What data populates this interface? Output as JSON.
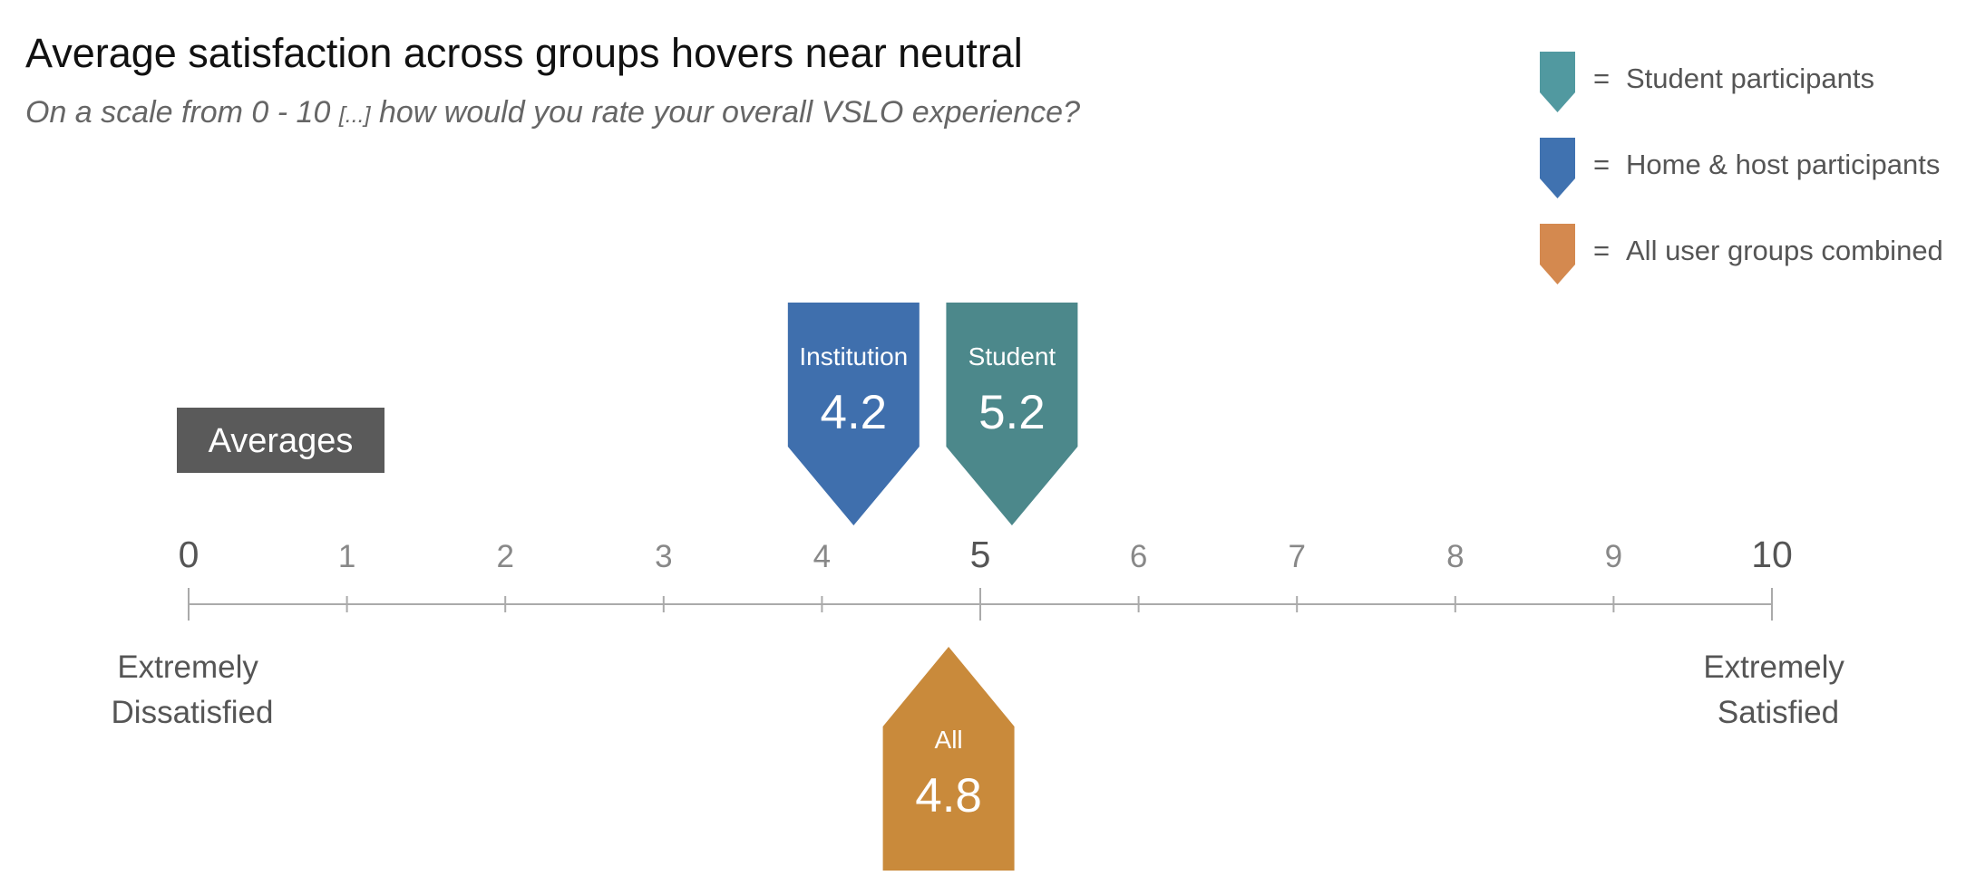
{
  "chart_data": {
    "type": "scale",
    "title": "Average satisfaction across groups hovers near neutral",
    "subtitle_prefix": "On a scale from 0 - 10 ",
    "subtitle_ellipsis": "[...]",
    "subtitle_suffix": " how would you rate your overall VSLO experience?",
    "xlim": [
      0,
      10
    ],
    "ticks": [
      "0",
      "1",
      "2",
      "3",
      "4",
      "5",
      "6",
      "7",
      "8",
      "9",
      "10"
    ],
    "low_label": [
      "Extremely",
      "Dissatisfied"
    ],
    "high_label": [
      "Extremely",
      "Satisfied"
    ],
    "badge": "Averages",
    "legend": [
      {
        "label": "Student participants",
        "color": "#5199a0"
      },
      {
        "label": "Home & host participants",
        "color": "#4072b0"
      },
      {
        "label": "All user groups combined",
        "color": "#d4894f"
      }
    ],
    "legend_separator": "=",
    "markers": [
      {
        "label": "Institution",
        "value": 4.2,
        "display": "4.2",
        "color": "#3f6fad",
        "side": "above"
      },
      {
        "label": "Student",
        "value": 5.2,
        "display": "5.2",
        "color": "#4c888b",
        "side": "above"
      },
      {
        "label": "All",
        "value": 4.8,
        "display": "4.8",
        "color": "#c98a3b",
        "side": "below"
      }
    ]
  }
}
